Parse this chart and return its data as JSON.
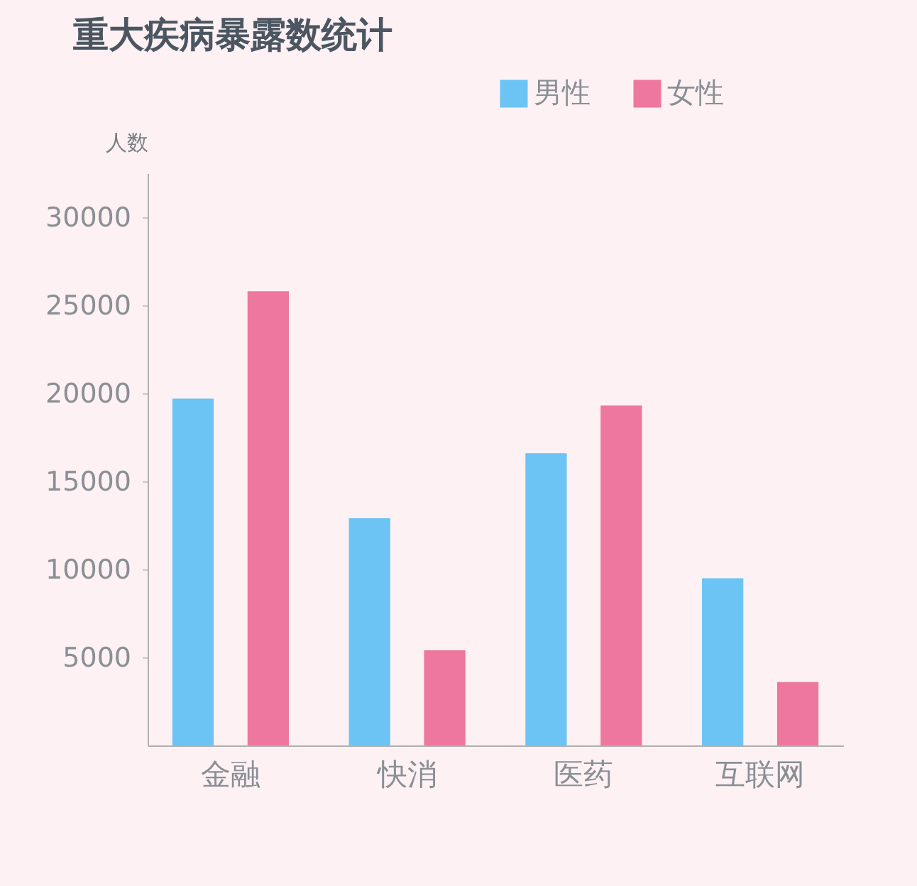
{
  "chart_data": {
    "type": "bar",
    "title": "重大疾病暴露数统计",
    "ylabel": "人数",
    "categories": [
      "金融",
      "快消",
      "医药",
      "互联网"
    ],
    "series": [
      {
        "name": "男性",
        "color": "#6cc4f4",
        "values": [
          19700,
          12900,
          16600,
          9500
        ]
      },
      {
        "name": "女性",
        "color": "#ee779f",
        "values": [
          25800,
          5400,
          19300,
          3600
        ]
      }
    ],
    "ylim": [
      0,
      32500
    ],
    "yticks": [
      5000,
      10000,
      15000,
      20000,
      25000,
      30000
    ],
    "grid": false,
    "legend": "top right"
  }
}
